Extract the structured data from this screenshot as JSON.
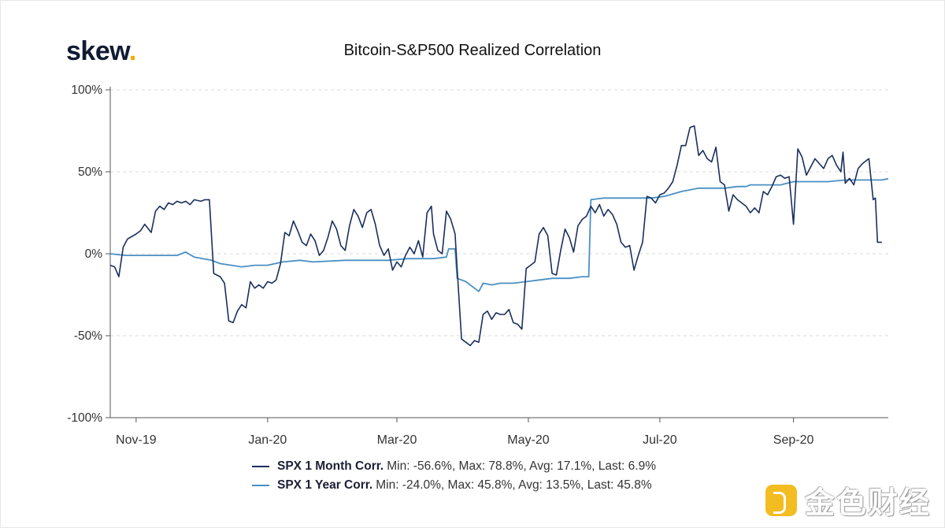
{
  "brand": {
    "name": "skew",
    "dot": "."
  },
  "watermark": {
    "text": "金色财经",
    "icon": "goldcoin-logo-icon"
  },
  "chart_data": {
    "type": "line",
    "title": "Bitcoin-S&P500 Realized Correlation",
    "xlabel": "",
    "ylabel": "",
    "ylim": [
      -100,
      100
    ],
    "xlim": [
      "2019-10-20",
      "2020-10-15"
    ],
    "y_ticks": [
      {
        "value": 100,
        "label": "100%"
      },
      {
        "value": 50,
        "label": "50%"
      },
      {
        "value": 0,
        "label": "0%"
      },
      {
        "value": -50,
        "label": "-50%"
      },
      {
        "value": -100,
        "label": "-100%"
      }
    ],
    "x_ticks": [
      {
        "date": "2019-11-01",
        "label": "Nov-19"
      },
      {
        "date": "2020-01-01",
        "label": "Jan-20"
      },
      {
        "date": "2020-03-01",
        "label": "Mar-20"
      },
      {
        "date": "2020-05-01",
        "label": "May-20"
      },
      {
        "date": "2020-07-01",
        "label": "Jul-20"
      },
      {
        "date": "2020-09-01",
        "label": "Sep-20"
      }
    ],
    "grid": "horizontal dashed",
    "legend_position": "bottom",
    "series": [
      {
        "name": "SPX 1 Month Corr.",
        "stats": "Min: -56.6%, Max: 78.8%, Avg: 17.1%, Last: 6.9%",
        "color": "#1a2f5c",
        "points": [
          [
            "2019-10-20",
            -7
          ],
          [
            "2019-10-22",
            -8
          ],
          [
            "2019-10-24",
            -14
          ],
          [
            "2019-10-26",
            4
          ],
          [
            "2019-10-28",
            9
          ],
          [
            "2019-11-01",
            12
          ],
          [
            "2019-11-03",
            14
          ],
          [
            "2019-11-05",
            18
          ],
          [
            "2019-11-08",
            13
          ],
          [
            "2019-11-10",
            26
          ],
          [
            "2019-11-12",
            29
          ],
          [
            "2019-11-14",
            27
          ],
          [
            "2019-11-16",
            31
          ],
          [
            "2019-11-18",
            30
          ],
          [
            "2019-11-20",
            32
          ],
          [
            "2019-11-22",
            31
          ],
          [
            "2019-11-24",
            32
          ],
          [
            "2019-11-26",
            30
          ],
          [
            "2019-11-28",
            33
          ],
          [
            "2019-12-01",
            32
          ],
          [
            "2019-12-03",
            33
          ],
          [
            "2019-12-05",
            33
          ],
          [
            "2019-12-07",
            -12
          ],
          [
            "2019-12-10",
            -14
          ],
          [
            "2019-12-12",
            -18
          ],
          [
            "2019-12-14",
            -41
          ],
          [
            "2019-12-16",
            -42
          ],
          [
            "2019-12-18",
            -35
          ],
          [
            "2019-12-20",
            -31
          ],
          [
            "2019-12-22",
            -33
          ],
          [
            "2019-12-24",
            -17
          ],
          [
            "2019-12-26",
            -21
          ],
          [
            "2019-12-28",
            -19
          ],
          [
            "2019-12-30",
            -21
          ],
          [
            "2020-01-01",
            -17
          ],
          [
            "2020-01-03",
            -18
          ],
          [
            "2020-01-05",
            -16
          ],
          [
            "2020-01-07",
            -6
          ],
          [
            "2020-01-09",
            13
          ],
          [
            "2020-01-11",
            11
          ],
          [
            "2020-01-13",
            20
          ],
          [
            "2020-01-15",
            14
          ],
          [
            "2020-01-17",
            7
          ],
          [
            "2020-01-19",
            5
          ],
          [
            "2020-01-21",
            12
          ],
          [
            "2020-01-23",
            8
          ],
          [
            "2020-01-25",
            -1
          ],
          [
            "2020-01-27",
            2
          ],
          [
            "2020-01-29",
            10
          ],
          [
            "2020-01-31",
            20
          ],
          [
            "2020-02-02",
            15
          ],
          [
            "2020-02-04",
            5
          ],
          [
            "2020-02-06",
            2
          ],
          [
            "2020-02-08",
            17
          ],
          [
            "2020-02-10",
            27
          ],
          [
            "2020-02-12",
            23
          ],
          [
            "2020-02-14",
            16
          ],
          [
            "2020-02-16",
            25
          ],
          [
            "2020-02-18",
            27
          ],
          [
            "2020-02-20",
            18
          ],
          [
            "2020-02-22",
            5
          ],
          [
            "2020-02-24",
            -1
          ],
          [
            "2020-02-26",
            3
          ],
          [
            "2020-02-28",
            -10
          ],
          [
            "2020-03-01",
            -5
          ],
          [
            "2020-03-03",
            -8
          ],
          [
            "2020-03-05",
            -1
          ],
          [
            "2020-03-07",
            4
          ],
          [
            "2020-03-09",
            0
          ],
          [
            "2020-03-11",
            8
          ],
          [
            "2020-03-13",
            -2
          ],
          [
            "2020-03-15",
            25
          ],
          [
            "2020-03-17",
            29
          ],
          [
            "2020-03-18",
            12
          ],
          [
            "2020-03-20",
            2
          ],
          [
            "2020-03-22",
            0
          ],
          [
            "2020-03-24",
            26
          ],
          [
            "2020-03-26",
            21
          ],
          [
            "2020-03-28",
            12
          ],
          [
            "2020-03-29",
            -10
          ],
          [
            "2020-03-31",
            -52
          ],
          [
            "2020-04-02",
            -54
          ],
          [
            "2020-04-04",
            -56
          ],
          [
            "2020-04-06",
            -53
          ],
          [
            "2020-04-08",
            -54
          ],
          [
            "2020-04-10",
            -37
          ],
          [
            "2020-04-12",
            -35
          ],
          [
            "2020-04-14",
            -40
          ],
          [
            "2020-04-16",
            -36
          ],
          [
            "2020-04-18",
            -37
          ],
          [
            "2020-04-20",
            -37
          ],
          [
            "2020-04-22",
            -34
          ],
          [
            "2020-04-24",
            -42
          ],
          [
            "2020-04-26",
            -43
          ],
          [
            "2020-04-28",
            -46
          ],
          [
            "2020-04-30",
            -9
          ],
          [
            "2020-05-02",
            -7
          ],
          [
            "2020-05-04",
            -5
          ],
          [
            "2020-05-06",
            12
          ],
          [
            "2020-05-08",
            16
          ],
          [
            "2020-05-10",
            11
          ],
          [
            "2020-05-12",
            -12
          ],
          [
            "2020-05-14",
            -13
          ],
          [
            "2020-05-16",
            2
          ],
          [
            "2020-05-18",
            15
          ],
          [
            "2020-05-20",
            10
          ],
          [
            "2020-05-22",
            1
          ],
          [
            "2020-05-24",
            17
          ],
          [
            "2020-05-26",
            21
          ],
          [
            "2020-05-28",
            23
          ],
          [
            "2020-05-30",
            29
          ],
          [
            "2020-06-01",
            25
          ],
          [
            "2020-06-03",
            30
          ],
          [
            "2020-06-05",
            23
          ],
          [
            "2020-06-07",
            27
          ],
          [
            "2020-06-09",
            24
          ],
          [
            "2020-06-11",
            18
          ],
          [
            "2020-06-13",
            7
          ],
          [
            "2020-06-15",
            4
          ],
          [
            "2020-06-17",
            5
          ],
          [
            "2020-06-19",
            -10
          ],
          [
            "2020-06-21",
            -1
          ],
          [
            "2020-06-23",
            7
          ],
          [
            "2020-06-25",
            35
          ],
          [
            "2020-06-27",
            34
          ],
          [
            "2020-06-29",
            31
          ],
          [
            "2020-07-01",
            36
          ],
          [
            "2020-07-03",
            37
          ],
          [
            "2020-07-05",
            40
          ],
          [
            "2020-07-07",
            44
          ],
          [
            "2020-07-09",
            54
          ],
          [
            "2020-07-11",
            66
          ],
          [
            "2020-07-13",
            66
          ],
          [
            "2020-07-15",
            77
          ],
          [
            "2020-07-17",
            78
          ],
          [
            "2020-07-19",
            60
          ],
          [
            "2020-07-21",
            63
          ],
          [
            "2020-07-23",
            58
          ],
          [
            "2020-07-25",
            56
          ],
          [
            "2020-07-27",
            65
          ],
          [
            "2020-07-29",
            44
          ],
          [
            "2020-07-31",
            42
          ],
          [
            "2020-08-02",
            26
          ],
          [
            "2020-08-04",
            36
          ],
          [
            "2020-08-06",
            33
          ],
          [
            "2020-08-08",
            31
          ],
          [
            "2020-08-10",
            29
          ],
          [
            "2020-08-12",
            25
          ],
          [
            "2020-08-14",
            28
          ],
          [
            "2020-08-16",
            25
          ],
          [
            "2020-08-18",
            38
          ],
          [
            "2020-08-20",
            36
          ],
          [
            "2020-08-22",
            41
          ],
          [
            "2020-08-24",
            47
          ],
          [
            "2020-08-26",
            48
          ],
          [
            "2020-08-28",
            46
          ],
          [
            "2020-08-30",
            47
          ],
          [
            "2020-09-01",
            18
          ],
          [
            "2020-09-03",
            64
          ],
          [
            "2020-09-05",
            59
          ],
          [
            "2020-09-07",
            48
          ],
          [
            "2020-09-09",
            53
          ],
          [
            "2020-09-11",
            58
          ],
          [
            "2020-09-13",
            55
          ],
          [
            "2020-09-15",
            52
          ],
          [
            "2020-09-17",
            58
          ],
          [
            "2020-09-19",
            60
          ],
          [
            "2020-09-21",
            54
          ],
          [
            "2020-09-23",
            50
          ],
          [
            "2020-09-24",
            62
          ],
          [
            "2020-09-25",
            43
          ],
          [
            "2020-09-27",
            46
          ],
          [
            "2020-09-29",
            42
          ],
          [
            "2020-10-01",
            52
          ],
          [
            "2020-10-03",
            55
          ],
          [
            "2020-10-05",
            57
          ],
          [
            "2020-10-06",
            58
          ],
          [
            "2020-10-08",
            33
          ],
          [
            "2020-10-09",
            34
          ],
          [
            "2020-10-10",
            7
          ],
          [
            "2020-10-12",
            7
          ]
        ]
      },
      {
        "name": "SPX 1 Year Corr.",
        "stats": "Min: -24.0%, Max: 45.8%, Avg: 13.5%, Last: 45.8%",
        "color": "#4a90c4",
        "points": [
          [
            "2019-10-20",
            0
          ],
          [
            "2019-10-27",
            -1
          ],
          [
            "2019-11-10",
            -1
          ],
          [
            "2019-11-20",
            -1
          ],
          [
            "2019-11-24",
            1
          ],
          [
            "2019-11-28",
            -2
          ],
          [
            "2019-12-06",
            -4
          ],
          [
            "2019-12-10",
            -6
          ],
          [
            "2019-12-20",
            -8
          ],
          [
            "2019-12-26",
            -7
          ],
          [
            "2020-01-01",
            -7
          ],
          [
            "2020-01-08",
            -5
          ],
          [
            "2020-01-16",
            -4
          ],
          [
            "2020-01-22",
            -5
          ],
          [
            "2020-02-06",
            -4
          ],
          [
            "2020-02-14",
            -4
          ],
          [
            "2020-02-26",
            -4
          ],
          [
            "2020-03-06",
            -3
          ],
          [
            "2020-03-13",
            -3
          ],
          [
            "2020-03-18",
            -3
          ],
          [
            "2020-03-24",
            -2
          ],
          [
            "2020-03-25",
            3
          ],
          [
            "2020-03-28",
            3
          ],
          [
            "2020-03-29",
            -15
          ],
          [
            "2020-04-02",
            -17
          ],
          [
            "2020-04-06",
            -21
          ],
          [
            "2020-04-08",
            -23
          ],
          [
            "2020-04-10",
            -18
          ],
          [
            "2020-04-14",
            -19
          ],
          [
            "2020-04-18",
            -18
          ],
          [
            "2020-04-24",
            -18
          ],
          [
            "2020-04-30",
            -17
          ],
          [
            "2020-05-06",
            -16
          ],
          [
            "2020-05-12",
            -15
          ],
          [
            "2020-05-20",
            -15
          ],
          [
            "2020-05-26",
            -14
          ],
          [
            "2020-05-29",
            -14
          ],
          [
            "2020-05-30",
            33
          ],
          [
            "2020-06-05",
            34
          ],
          [
            "2020-06-13",
            34
          ],
          [
            "2020-06-21",
            34
          ],
          [
            "2020-06-27",
            34
          ],
          [
            "2020-07-03",
            35
          ],
          [
            "2020-07-11",
            38
          ],
          [
            "2020-07-19",
            40
          ],
          [
            "2020-07-25",
            40
          ],
          [
            "2020-07-31",
            40
          ],
          [
            "2020-08-06",
            41
          ],
          [
            "2020-08-10",
            41
          ],
          [
            "2020-08-12",
            42
          ],
          [
            "2020-08-20",
            42
          ],
          [
            "2020-08-26",
            42
          ],
          [
            "2020-09-01",
            44
          ],
          [
            "2020-09-09",
            44
          ],
          [
            "2020-09-17",
            44
          ],
          [
            "2020-09-25",
            45
          ],
          [
            "2020-10-01",
            45
          ],
          [
            "2020-10-07",
            45
          ],
          [
            "2020-10-12",
            45
          ],
          [
            "2020-10-15",
            45.8
          ]
        ]
      }
    ]
  }
}
